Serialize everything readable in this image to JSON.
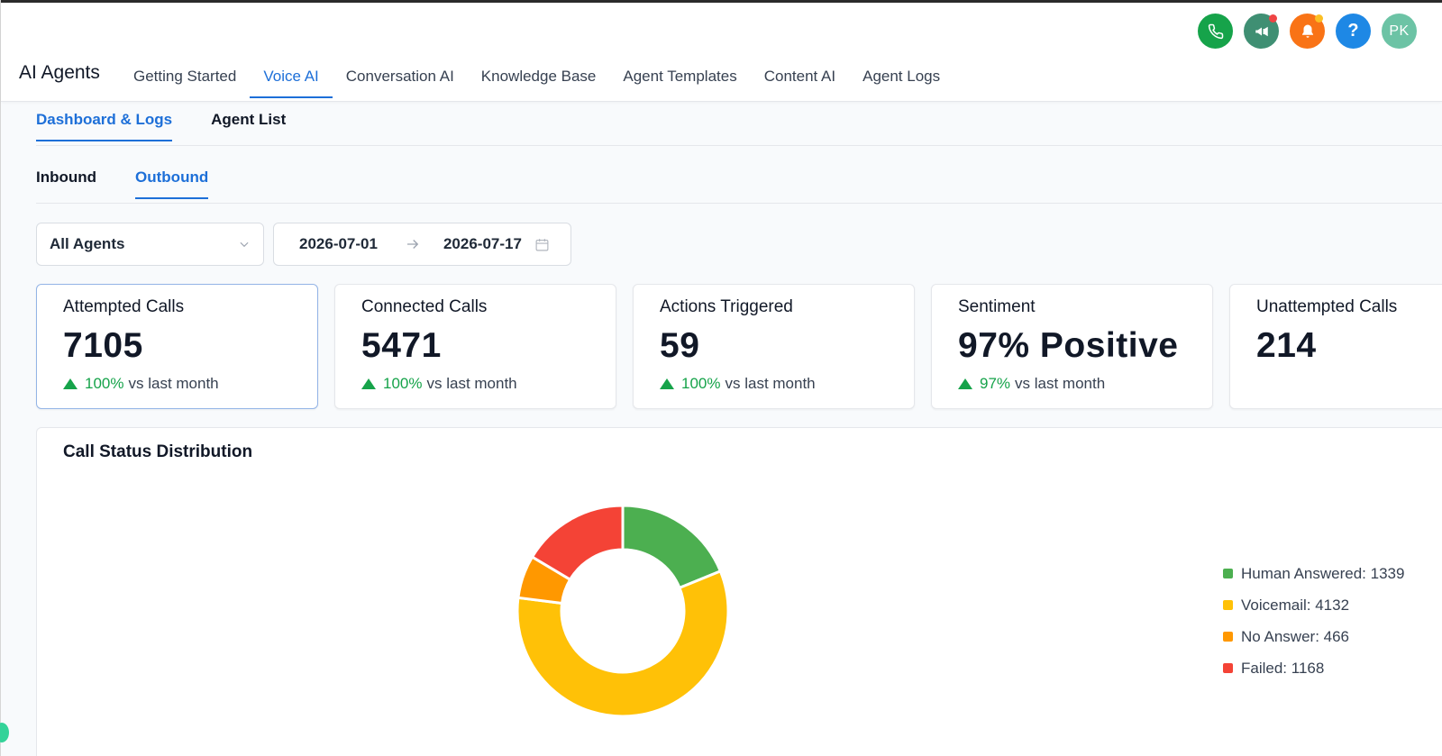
{
  "header": {
    "app_title": "AI Agents",
    "tabs": [
      {
        "label": "Getting Started",
        "active": false
      },
      {
        "label": "Voice AI",
        "active": true
      },
      {
        "label": "Conversation AI",
        "active": false
      },
      {
        "label": "Knowledge Base",
        "active": false
      },
      {
        "label": "Agent Templates",
        "active": false
      },
      {
        "label": "Content AI",
        "active": false
      },
      {
        "label": "Agent Logs",
        "active": false
      }
    ],
    "icons": {
      "help": "?",
      "avatar_initials": "PK"
    }
  },
  "subtabs": {
    "dashboard": "Dashboard & Logs",
    "agent_list": "Agent List"
  },
  "direction_tabs": {
    "inbound": "Inbound",
    "outbound": "Outbound"
  },
  "filters": {
    "agent_select": "All Agents",
    "date_start": "2026-07-01",
    "date_end": "2026-07-17"
  },
  "kpis": [
    {
      "label": "Attempted Calls",
      "value": "7105",
      "trend_pct": "100%",
      "trend_text": "vs last month"
    },
    {
      "label": "Connected Calls",
      "value": "5471",
      "trend_pct": "100%",
      "trend_text": "vs last month"
    },
    {
      "label": "Actions Triggered",
      "value": "59",
      "trend_pct": "100%",
      "trend_text": "vs last month"
    },
    {
      "label": "Sentiment",
      "value": "97% Positive",
      "trend_pct": "97%",
      "trend_text": "vs last month"
    },
    {
      "label": "Unattempted Calls",
      "value": "214"
    }
  ],
  "chart_data": {
    "type": "pie",
    "title": "Call Status Distribution",
    "categories": [
      "Human Answered",
      "Voicemail",
      "No Answer",
      "Failed"
    ],
    "values": [
      1339,
      4132,
      466,
      1168
    ],
    "colors": [
      "#4caf50",
      "#ffc107",
      "#ff9800",
      "#f44336"
    ],
    "legend_labels": [
      "Human Answered: 1339",
      "Voicemail: 4132",
      "No Answer: 466",
      "Failed: 1168"
    ],
    "legend_position": "right",
    "donut": true
  }
}
